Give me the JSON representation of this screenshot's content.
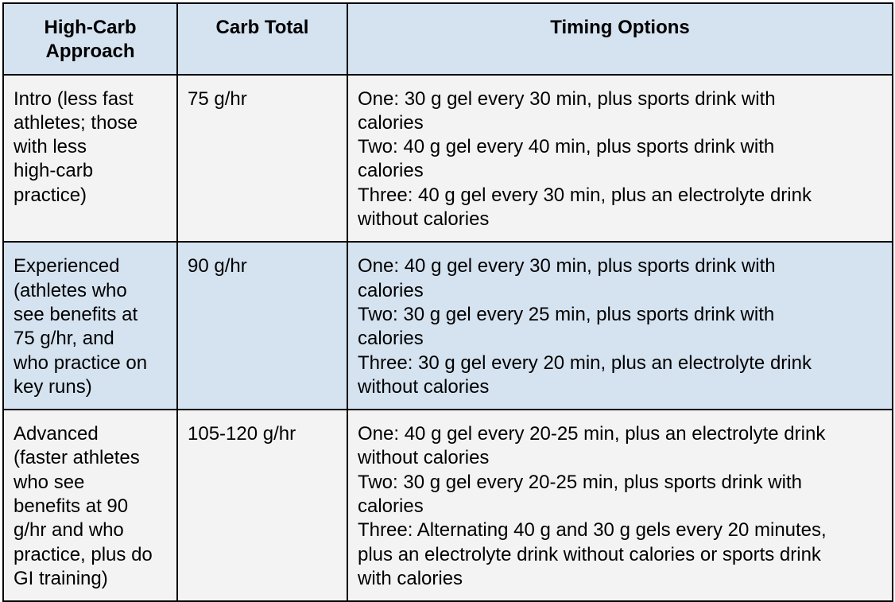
{
  "table": {
    "headers": [
      "High-Carb\nApproach",
      "Carb Total",
      "Timing Options"
    ],
    "rows": [
      {
        "approach": "Intro (less fast\nathletes; those\nwith less\nhigh-carb\npractice)",
        "carb_total": "75 g/hr",
        "timing": [
          "One: 30 g gel every 30 min, plus sports drink with\ncalories",
          "Two: 40 g gel every 40 min, plus sports drink with\ncalories",
          "Three: 40 g gel every 30 min, plus an electrolyte drink\nwithout calories"
        ]
      },
      {
        "approach": "Experienced\n(athletes who\nsee benefits at\n75 g/hr, and\nwho practice on\nkey runs)",
        "carb_total": "90 g/hr",
        "timing": [
          "One: 40 g gel every 30 min, plus sports drink with\ncalories",
          "Two: 30 g gel every 25 min, plus sports drink with\ncalories",
          "Three: 30 g gel every 20 min, plus an electrolyte drink\nwithout calories"
        ]
      },
      {
        "approach": "Advanced\n(faster athletes\nwho see\nbenefits at 90\ng/hr and who\npractice, plus do\nGI training)",
        "carb_total": "105-120 g/hr",
        "timing": [
          "One: 40 g gel every 20-25 min, plus an electrolyte drink\nwithout calories",
          "Two: 30 g gel every 20-25 min, plus sports drink with\ncalories",
          "Three: Alternating 40 g and 30 g gels every 20 minutes,\nplus an electrolyte drink without calories or sports drink\nwith calories"
        ]
      }
    ]
  },
  "colors": {
    "header_bg": "#d5e2f0",
    "row_light_bg": "#f3f3f3",
    "row_blue_bg": "#d5e2f0",
    "border": "#000000"
  }
}
